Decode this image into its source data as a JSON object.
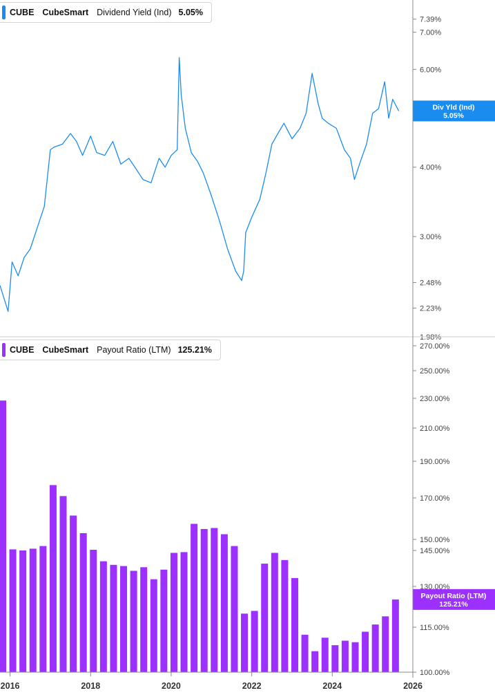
{
  "colors": {
    "yield_line": "#1a8cf0",
    "payout_bar": "#9b30ff",
    "axis": "#888888",
    "grid_divider": "#cccccc"
  },
  "chart_data": [
    {
      "type": "line",
      "title": "",
      "legend": {
        "symbol": "CUBE",
        "company": "CubeSmart",
        "metric": "Dividend Yield (Ind)",
        "value": "5.05%"
      },
      "y_scale": "log",
      "ylim": [
        1.98,
        8.0
      ],
      "y_ticks": [
        7.39,
        7.0,
        6.0,
        5.0,
        4.0,
        3.0,
        2.48,
        2.23,
        1.98
      ],
      "y_tick_labels": [
        "7.39%",
        "7.00%",
        "6.00%",
        "5.00%",
        "4.00%",
        "3.00%",
        "2.48%",
        "2.23%",
        "1.98%"
      ],
      "series": [
        {
          "name": "Div Yld (Ind)",
          "x": [
            2015.75,
            2015.95,
            2016.05,
            2016.2,
            2016.35,
            2016.5,
            2016.7,
            2016.85,
            2017.0,
            2017.1,
            2017.3,
            2017.5,
            2017.65,
            2017.8,
            2018.0,
            2018.15,
            2018.35,
            2018.55,
            2018.75,
            2018.95,
            2019.1,
            2019.3,
            2019.5,
            2019.7,
            2019.85,
            2020.0,
            2020.15,
            2020.2,
            2020.25,
            2020.35,
            2020.5,
            2020.65,
            2020.8,
            2021.0,
            2021.2,
            2021.4,
            2021.6,
            2021.75,
            2021.8,
            2021.85,
            2022.0,
            2022.2,
            2022.35,
            2022.5,
            2022.65,
            2022.8,
            2023.0,
            2023.2,
            2023.35,
            2023.5,
            2023.65,
            2023.75,
            2023.9,
            2024.1,
            2024.3,
            2024.45,
            2024.55,
            2024.7,
            2024.85,
            2025.0,
            2025.15,
            2025.3,
            2025.4,
            2025.5,
            2025.65
          ],
          "values": [
            2.45,
            2.2,
            2.7,
            2.55,
            2.75,
            2.85,
            3.15,
            3.4,
            4.3,
            4.35,
            4.4,
            4.6,
            4.45,
            4.2,
            4.55,
            4.25,
            4.2,
            4.45,
            4.05,
            4.15,
            4.0,
            3.8,
            3.75,
            4.15,
            4.0,
            4.2,
            4.3,
            6.3,
            5.4,
            4.7,
            4.25,
            4.1,
            3.9,
            3.55,
            3.2,
            2.85,
            2.6,
            2.5,
            2.6,
            3.05,
            3.25,
            3.5,
            3.9,
            4.4,
            4.6,
            4.8,
            4.5,
            4.7,
            5.0,
            5.9,
            5.2,
            4.9,
            4.8,
            4.7,
            4.3,
            4.15,
            3.8,
            4.1,
            4.4,
            5.0,
            5.1,
            5.7,
            4.9,
            5.3,
            5.05
          ]
        }
      ],
      "end_badge": {
        "label": "Div Yld (Ind)",
        "value": "5.05%"
      }
    },
    {
      "type": "bar",
      "title": "",
      "legend": {
        "symbol": "CUBE",
        "company": "CubeSmart",
        "metric": "Payout Ratio (LTM)",
        "value": "125.21%"
      },
      "ylim": [
        100,
        270
      ],
      "y_ticks": [
        100,
        115,
        130,
        145,
        150,
        170,
        190,
        210,
        230,
        250,
        270
      ],
      "y_tick_labels": [
        "100.00%",
        "115.00%",
        "130.00%",
        "145.00%",
        "150.00%",
        "170.00%",
        "190.00%",
        "210.00%",
        "230.00%",
        "250.00%",
        "270.00%"
      ],
      "x": [
        2015.75,
        2016.0,
        2016.25,
        2016.5,
        2016.75,
        2017.0,
        2017.25,
        2017.5,
        2017.75,
        2018.0,
        2018.25,
        2018.5,
        2018.75,
        2019.0,
        2019.25,
        2019.5,
        2019.75,
        2020.0,
        2020.25,
        2020.5,
        2020.75,
        2021.0,
        2021.25,
        2021.5,
        2021.75,
        2022.0,
        2022.25,
        2022.5,
        2022.75,
        2023.0,
        2023.25,
        2023.5,
        2023.75,
        2024.0,
        2024.25,
        2024.5,
        2024.75,
        2025.0,
        2025.25,
        2025.5
      ],
      "series": [
        {
          "name": "Payout Ratio (LTM)",
          "values": [
            228.5,
            145.5,
            145.0,
            145.8,
            147.0,
            177.0,
            171.0,
            161.5,
            153.0,
            145.3,
            140.5,
            139.0,
            138.5,
            136.5,
            138.0,
            133.0,
            137.0,
            144.0,
            144.3,
            157.5,
            155.0,
            155.5,
            152.5,
            147.0,
            120.0,
            121.0,
            139.5,
            144.0,
            141.0,
            133.5,
            112.5,
            107.0,
            111.5,
            109.0,
            110.5,
            110.0,
            113.5,
            116.0,
            119.0,
            125.21
          ]
        }
      ],
      "end_badge": {
        "label": "Payout Ratio (LTM)",
        "value": "125.21%"
      }
    }
  ],
  "x_axis": {
    "ticks": [
      2016,
      2018,
      2020,
      2022,
      2024,
      2026
    ],
    "labels": [
      "2016",
      "2018",
      "2020",
      "2022",
      "2024",
      "2026"
    ]
  }
}
